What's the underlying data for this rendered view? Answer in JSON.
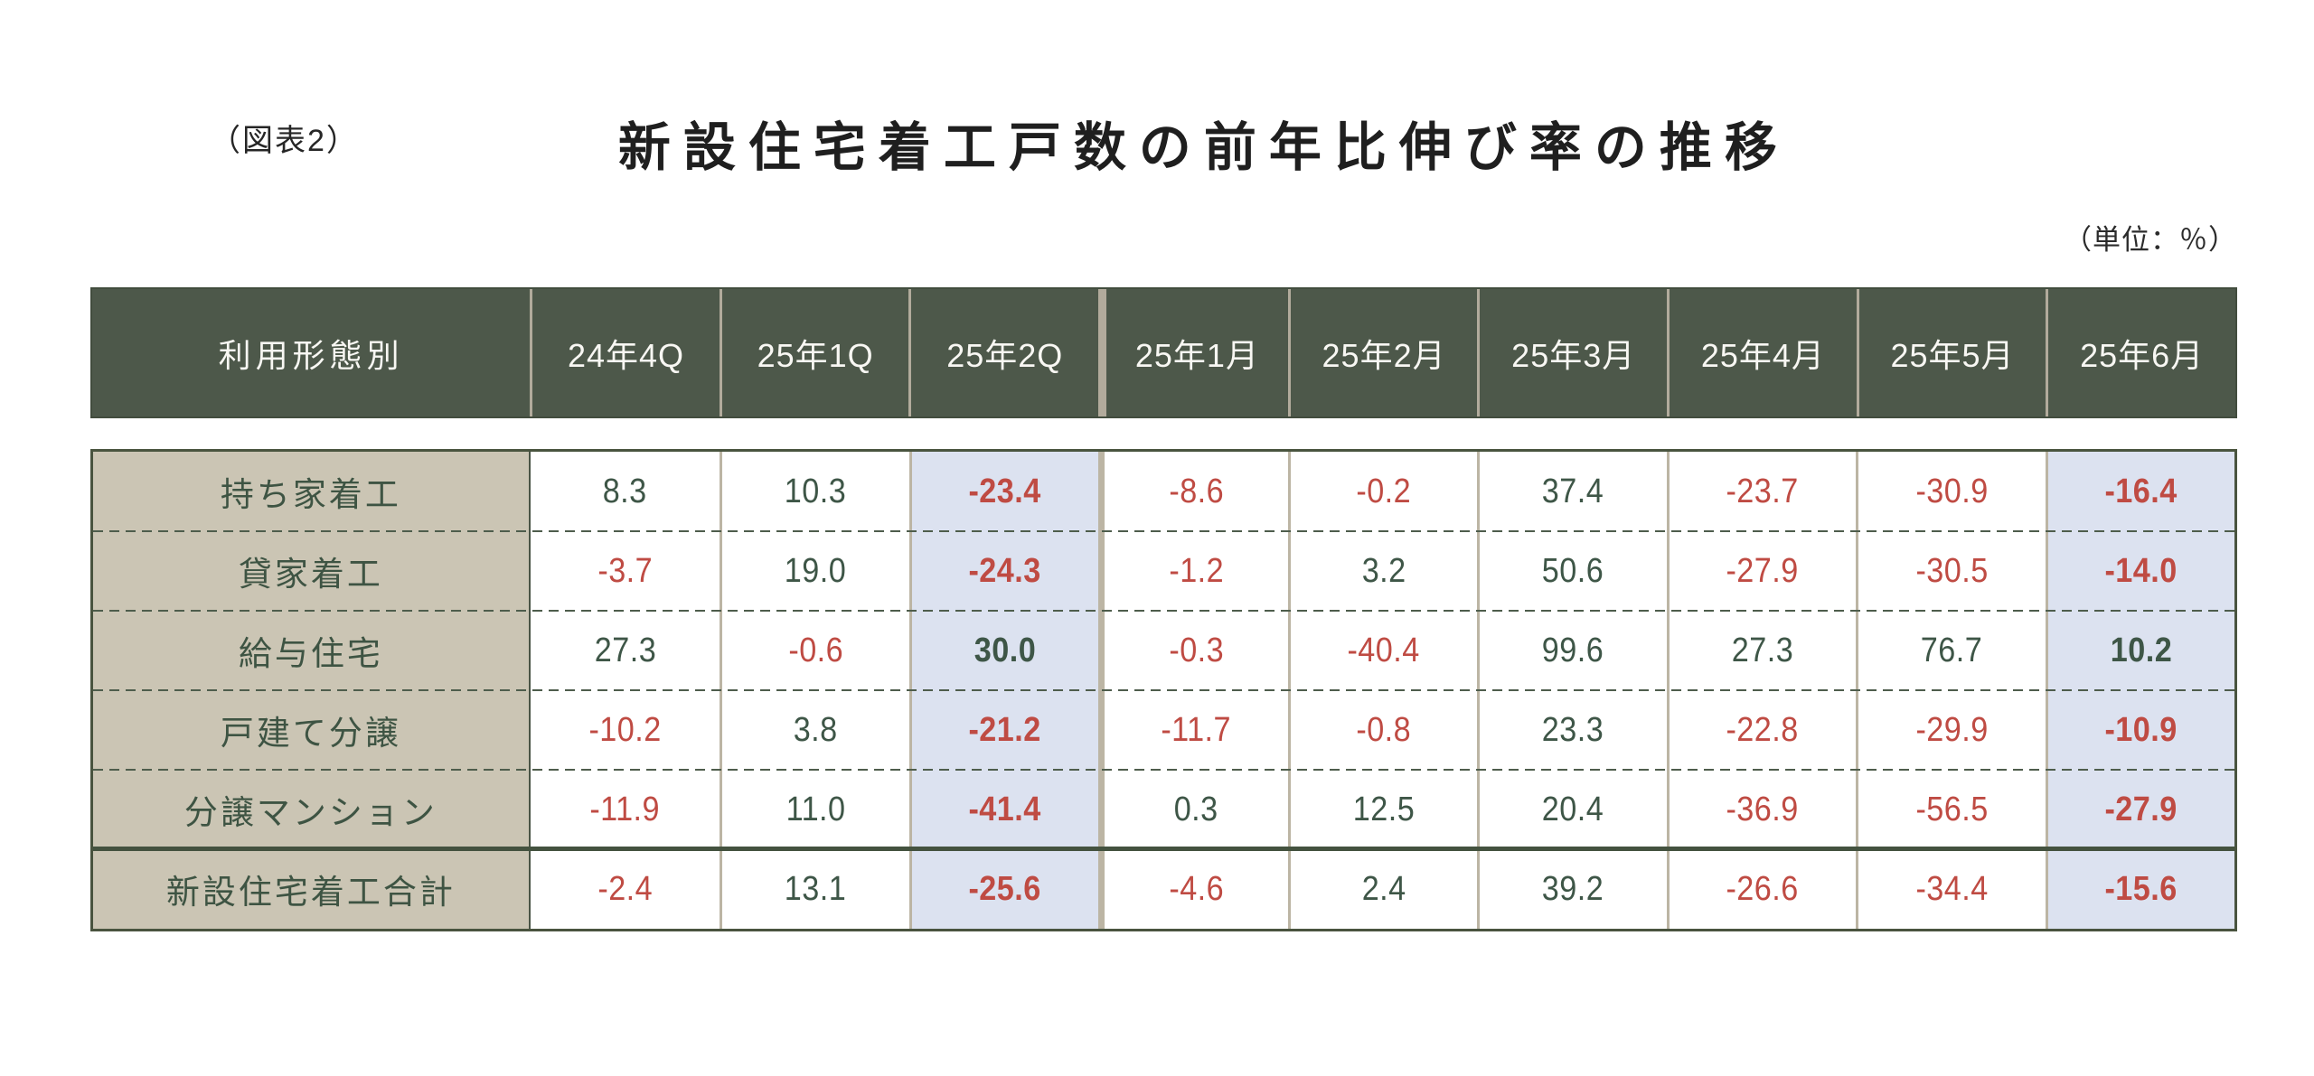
{
  "figure_label": "（図表2）",
  "title": "新設住宅着工戸数の前年比伸び率の推移",
  "unit_note": "（単位：％）",
  "colors": {
    "header_bg": "#4d584a",
    "header_text": "#f8f7f3",
    "label_column_bg": "#cbc5b4",
    "label_text": "#3e5443",
    "highlight_column_bg": "#dce2f0",
    "positive_value": "#3e5647",
    "negative_value": "#bf4b43",
    "grid_line_tan": "#bcb5a4",
    "grid_line_green": "#49543f"
  },
  "chart_data": {
    "type": "table",
    "title": "新設住宅着工戸数の前年比伸び率の推移",
    "unit": "%",
    "columns": [
      "利用形態別",
      "24年4Q",
      "25年1Q",
      "25年2Q",
      "25年1月",
      "25年2月",
      "25年3月",
      "25年4月",
      "25年5月",
      "25年6月"
    ],
    "highlight_columns": [
      "25年2Q",
      "25年6月"
    ],
    "rows": [
      {
        "label": "持ち家着工",
        "values": [
          8.3,
          10.3,
          -23.4,
          -8.6,
          -0.2,
          37.4,
          -23.7,
          -30.9,
          -16.4
        ]
      },
      {
        "label": "貸家着工",
        "values": [
          -3.7,
          19.0,
          -24.3,
          -1.2,
          3.2,
          50.6,
          -27.9,
          -30.5,
          -14.0
        ]
      },
      {
        "label": "給与住宅",
        "values": [
          27.3,
          -0.6,
          30.0,
          -0.3,
          -40.4,
          99.6,
          27.3,
          76.7,
          10.2
        ]
      },
      {
        "label": "戸建て分譲",
        "values": [
          -10.2,
          3.8,
          -21.2,
          -11.7,
          -0.8,
          23.3,
          -22.8,
          -29.9,
          -10.9
        ]
      },
      {
        "label": "分譲マンション",
        "values": [
          -11.9,
          11.0,
          -41.4,
          0.3,
          12.5,
          20.4,
          -36.9,
          -56.5,
          -27.9
        ]
      },
      {
        "label": "新設住宅着工合計",
        "values": [
          -2.4,
          13.1,
          -25.6,
          -4.6,
          2.4,
          39.2,
          -26.6,
          -34.4,
          -15.6
        ],
        "is_total": true
      }
    ]
  }
}
